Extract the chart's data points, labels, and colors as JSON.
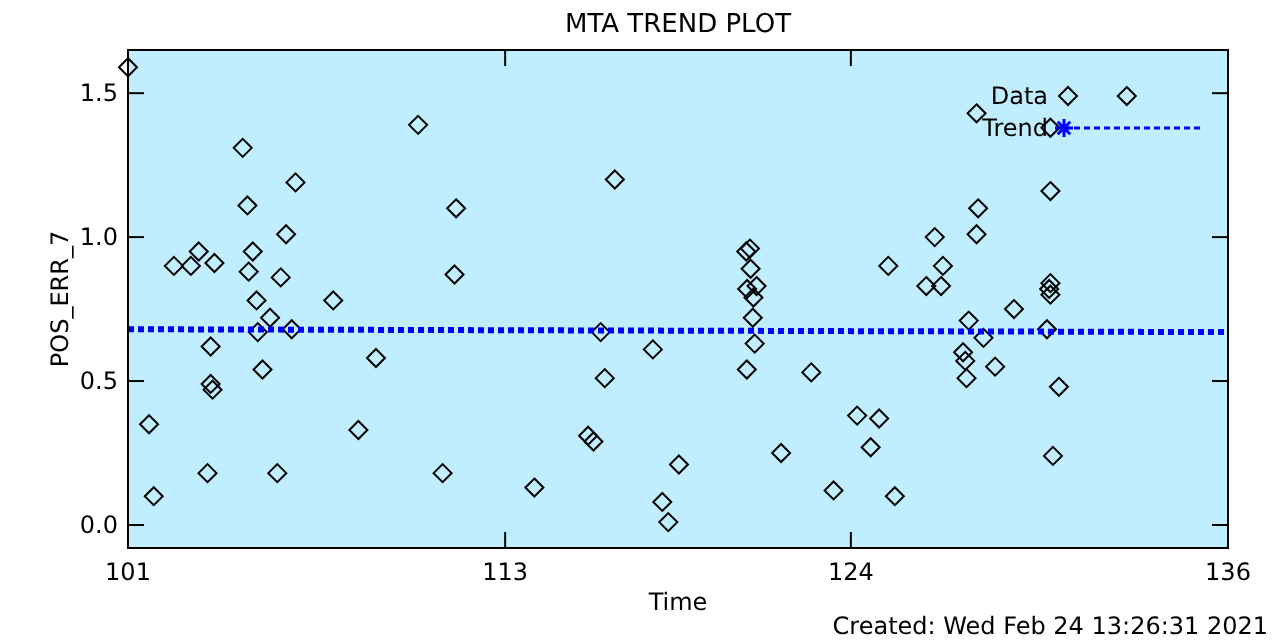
{
  "chart_data": {
    "type": "scatter",
    "title": "MTA TREND PLOT",
    "xlabel": "Time",
    "ylabel": "POS_ERR_7",
    "annotations": [
      "Created: Wed Feb 24 13:26:31 2021"
    ],
    "xlim": [
      101,
      136
    ],
    "xticks": [
      101,
      113,
      124,
      136
    ],
    "ylim": [
      -0.08,
      1.65
    ],
    "yticks": [
      {
        "value": 0,
        "label": "0.0"
      },
      {
        "value": 0.5,
        "label": "0.5"
      },
      {
        "value": 1,
        "label": "1.0"
      },
      {
        "value": 1.5,
        "label": "1.5"
      }
    ],
    "legend": "top right",
    "grid": false,
    "series": [
      {
        "name": "Data",
        "marker": "diamond",
        "color": "#000000",
        "x": [
          101,
          102.46,
          103.0,
          103.25,
          103.75,
          101.67,
          101.82,
          103.63,
          103.63,
          103.69,
          103.53,
          104.65,
          104.8,
          104.97,
          104.84,
          105.09,
          105.52,
          105.13,
          105.28,
          105.75,
          106.03,
          105.86,
          106.33,
          106.21,
          107.53,
          108.33,
          108.89,
          110.23,
          111.01,
          111.44,
          111.39,
          116.49,
          116.04,
          117.7,
          116.17,
          115.64,
          115.81,
          113.93,
          118.0,
          118.19,
          118.53,
          120.67,
          120.79,
          120.81,
          120.7,
          121.0,
          120.9,
          120.88,
          120.94,
          120.69,
          122.74,
          121.78,
          124.2,
          123.45,
          125.19,
          125.4,
          132.78,
          128.0,
          130.35,
          130.35,
          128.05,
          128.0,
          126.67,
          126.4,
          126.87,
          126.93,
          129.19,
          130.35,
          130.31,
          130.35,
          127.75,
          128.22,
          130.24,
          127.57,
          127.64,
          127.68,
          128.59,
          130.62,
          124.9,
          124.63,
          130.43
        ],
        "values": [
          1.59,
          0.9,
          0.9,
          0.95,
          0.91,
          0.35,
          0.1,
          0.62,
          0.49,
          0.47,
          0.18,
          1.31,
          1.11,
          0.95,
          0.88,
          0.78,
          0.72,
          0.67,
          0.54,
          0.18,
          1.01,
          0.86,
          1.19,
          0.68,
          0.78,
          0.33,
          0.58,
          1.39,
          0.18,
          1.1,
          0.87,
          1.2,
          0.67,
          0.61,
          0.51,
          0.31,
          0.29,
          0.13,
          0.08,
          0.01,
          0.21,
          0.95,
          0.96,
          0.89,
          0.82,
          0.83,
          0.79,
          0.72,
          0.63,
          0.54,
          0.53,
          0.25,
          0.38,
          0.12,
          0.9,
          0.1,
          1.49,
          1.43,
          1.38,
          1.16,
          1.1,
          1.01,
          1.0,
          0.83,
          0.83,
          0.9,
          0.75,
          0.84,
          0.82,
          0.8,
          0.71,
          0.65,
          0.68,
          0.6,
          0.57,
          0.51,
          0.55,
          0.48,
          0.37,
          0.27,
          0.24
        ]
      },
      {
        "name": "Trend",
        "type": "line",
        "marker": "none",
        "line_style": "dotted",
        "color": "#0000ff",
        "x": [
          101,
          136
        ],
        "values": [
          0.68,
          0.67
        ]
      }
    ]
  }
}
